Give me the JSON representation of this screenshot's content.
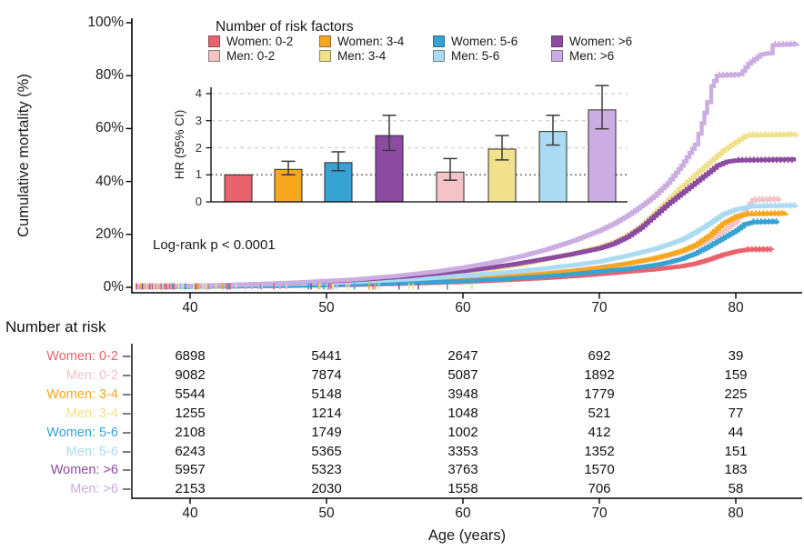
{
  "colors": {
    "women_0_2": "#E8636B",
    "men_0_2": "#F4C3C8",
    "women_3_4": "#F7A71D",
    "men_3_4": "#F1E18D",
    "women_5_6": "#37A2D4",
    "men_5_6": "#ABDBF2",
    "women_gt6": "#8C4BA0",
    "men_gt6": "#CBADE1"
  },
  "legend": {
    "title": "Number of risk factors",
    "columns": [
      [
        {
          "label": "Women: 0-2",
          "color_key": "women_0_2"
        },
        {
          "label": "Men: 0-2",
          "color_key": "men_0_2"
        }
      ],
      [
        {
          "label": "Women: 3-4",
          "color_key": "women_3_4"
        },
        {
          "label": "Men: 3-4",
          "color_key": "men_3_4"
        }
      ],
      [
        {
          "label": "Women: 5-6",
          "color_key": "women_5_6"
        },
        {
          "label": "Men: 5-6",
          "color_key": "men_5_6"
        }
      ],
      [
        {
          "label": "Women: >6",
          "color_key": "women_gt6"
        },
        {
          "label": "Men: >6",
          "color_key": "men_gt6"
        }
      ]
    ]
  },
  "chart_data": [
    {
      "id": "km_curves",
      "type": "line",
      "ylabel": "Cumulative mortality (%)",
      "xlabel": "Age (years)",
      "annotation": "Log-rank p < 0.0001",
      "xticks": [
        "40",
        "50",
        "60",
        "70",
        "80"
      ],
      "xtick_ages": [
        40,
        50,
        60,
        70,
        80
      ],
      "yticks": [
        "0%",
        "20%",
        "40%",
        "60%",
        "80%",
        "100%"
      ],
      "ytick_vals": [
        0,
        20,
        40,
        60,
        80,
        100
      ],
      "xlim": [
        35.7,
        84.6
      ],
      "ylim": [
        0,
        100
      ],
      "series": [
        {
          "name": "Women: 0-2",
          "color_key": "women_0_2",
          "points": [
            [
              36,
              0.1
            ],
            [
              42,
              0.3
            ],
            [
              47,
              0.5
            ],
            [
              52,
              0.9
            ],
            [
              56,
              1.4
            ],
            [
              60,
              2.0
            ],
            [
              63,
              2.7
            ],
            [
              66,
              3.5
            ],
            [
              68,
              4.2
            ],
            [
              70,
              5.0
            ],
            [
              72,
              5.9
            ],
            [
              74,
              6.8
            ],
            [
              76,
              8.0
            ],
            [
              77,
              9.0
            ],
            [
              78,
              10.5
            ],
            [
              79,
              12.3
            ],
            [
              80,
              13.6
            ],
            [
              80.8,
              14.3
            ],
            [
              82.6,
              14.4
            ]
          ],
          "censor": [
            {
              "from": 80.9,
              "to": 82.6,
              "pct": 14.4
            }
          ]
        },
        {
          "name": "Men: 0-2",
          "color_key": "men_0_2",
          "points": [
            [
              36,
              0.1
            ],
            [
              42,
              0.4
            ],
            [
              47,
              0.8
            ],
            [
              52,
              1.4
            ],
            [
              56,
              2.2
            ],
            [
              60,
              3.2
            ],
            [
              63,
              4.2
            ],
            [
              66,
              5.4
            ],
            [
              68,
              6.4
            ],
            [
              70,
              7.6
            ],
            [
              72,
              9.0
            ],
            [
              74,
              10.8
            ],
            [
              75,
              12.0
            ],
            [
              76,
              13.5
            ],
            [
              77,
              15.5
            ],
            [
              78,
              18.0
            ],
            [
              79,
              21.0
            ],
            [
              80,
              25.0
            ],
            [
              80.6,
              29.0
            ],
            [
              81.2,
              33.0
            ],
            [
              83.2,
              33.4
            ]
          ],
          "censor": [
            {
              "from": 81.4,
              "to": 83.2,
              "pct": 33.4
            }
          ]
        },
        {
          "name": "Women: 3-4",
          "color_key": "women_3_4",
          "points": [
            [
              36,
              0.1
            ],
            [
              42,
              0.3
            ],
            [
              47,
              0.7
            ],
            [
              52,
              1.2
            ],
            [
              56,
              2.0
            ],
            [
              60,
              3.0
            ],
            [
              63,
              4.0
            ],
            [
              66,
              5.2
            ],
            [
              68,
              6.2
            ],
            [
              70,
              7.4
            ],
            [
              72,
              9.0
            ],
            [
              74,
              11.0
            ],
            [
              75,
              12.3
            ],
            [
              76,
              13.8
            ],
            [
              77,
              16.0
            ],
            [
              78,
              19.5
            ],
            [
              79,
              24.0
            ],
            [
              80,
              26.8
            ],
            [
              80.7,
              27.6
            ],
            [
              83.7,
              28.0
            ]
          ],
          "censor": [
            {
              "from": 80.9,
              "to": 83.7,
              "pct": 28.0
            }
          ]
        },
        {
          "name": "Men: 3-4",
          "color_key": "men_3_4",
          "points": [
            [
              36,
              0.1
            ],
            [
              42,
              0.5
            ],
            [
              47,
              1.0
            ],
            [
              52,
              1.9
            ],
            [
              56,
              3.2
            ],
            [
              60,
              5.5
            ],
            [
              62,
              6.8
            ],
            [
              64,
              8.5
            ],
            [
              66,
              10.5
            ],
            [
              68,
              12.8
            ],
            [
              70,
              15.3
            ],
            [
              71,
              17.0
            ],
            [
              72,
              19.5
            ],
            [
              73,
              23.0
            ],
            [
              74,
              28.0
            ],
            [
              75,
              33.0
            ],
            [
              76,
              38.0
            ],
            [
              77,
              42.5
            ],
            [
              78,
              47.0
            ],
            [
              79,
              51.5
            ],
            [
              80,
              55.0
            ],
            [
              80.7,
              57.3
            ],
            [
              84.4,
              57.8
            ]
          ],
          "censor": [
            {
              "from": 81.0,
              "to": 84.4,
              "pct": 57.8
            }
          ]
        },
        {
          "name": "Women: 5-6",
          "color_key": "women_5_6",
          "points": [
            [
              36,
              0.1
            ],
            [
              42,
              0.3
            ],
            [
              47,
              0.6
            ],
            [
              52,
              1.0
            ],
            [
              56,
              1.6
            ],
            [
              60,
              2.4
            ],
            [
              63,
              3.2
            ],
            [
              66,
              4.2
            ],
            [
              68,
              5.0
            ],
            [
              70,
              6.0
            ],
            [
              72,
              7.0
            ],
            [
              74,
              8.4
            ],
            [
              75,
              9.4
            ],
            [
              76,
              10.8
            ],
            [
              77,
              12.8
            ],
            [
              78,
              15.5
            ],
            [
              79,
              18.5
            ],
            [
              80,
              21.5
            ],
            [
              80.6,
              23.8
            ],
            [
              81.2,
              24.6
            ],
            [
              83,
              24.9
            ]
          ],
          "censor": [
            {
              "from": 81.3,
              "to": 83.0,
              "pct": 24.9
            }
          ]
        },
        {
          "name": "Men: 5-6",
          "color_key": "men_5_6",
          "points": [
            [
              36,
              0.2
            ],
            [
              42,
              0.6
            ],
            [
              47,
              1.2
            ],
            [
              52,
              2.0
            ],
            [
              56,
              3.0
            ],
            [
              60,
              4.3
            ],
            [
              63,
              5.6
            ],
            [
              66,
              7.2
            ],
            [
              68,
              8.4
            ],
            [
              70,
              9.8
            ],
            [
              72,
              12.0
            ],
            [
              74,
              14.5
            ],
            [
              75,
              16.2
            ],
            [
              76,
              18.0
            ],
            [
              77,
              20.8
            ],
            [
              78,
              24.0
            ],
            [
              79,
              27.5
            ],
            [
              80,
              29.5
            ],
            [
              81,
              30.5
            ],
            [
              84.4,
              31.0
            ]
          ],
          "censor": [
            {
              "from": 81.2,
              "to": 84.4,
              "pct": 31.0
            }
          ]
        },
        {
          "name": "Women: >6",
          "color_key": "women_gt6",
          "points": [
            [
              36,
              0.2
            ],
            [
              42,
              0.8
            ],
            [
              47,
              1.6
            ],
            [
              52,
              2.7
            ],
            [
              56,
              4.2
            ],
            [
              60,
              6.2
            ],
            [
              62,
              7.5
            ],
            [
              64,
              9.0
            ],
            [
              66,
              10.8
            ],
            [
              68,
              12.6
            ],
            [
              70,
              14.8
            ],
            [
              71,
              16.5
            ],
            [
              72,
              19.0
            ],
            [
              73,
              22.5
            ],
            [
              74,
              27.0
            ],
            [
              75,
              31.5
            ],
            [
              76,
              35.5
            ],
            [
              77,
              39.5
            ],
            [
              78,
              43.5
            ],
            [
              78.6,
              46.0
            ],
            [
              79.3,
              47.5
            ],
            [
              80,
              48.0
            ],
            [
              84.4,
              48.4
            ]
          ],
          "censor": [
            {
              "from": 80.2,
              "to": 84.4,
              "pct": 48.2
            }
          ]
        },
        {
          "name": "Men: >6",
          "color_key": "men_gt6",
          "points": [
            [
              36,
              0.2
            ],
            [
              40,
              0.6
            ],
            [
              44,
              1.1
            ],
            [
              48,
              1.9
            ],
            [
              52,
              3.0
            ],
            [
              55,
              4.3
            ],
            [
              58,
              6.0
            ],
            [
              60,
              7.5
            ],
            [
              62,
              9.3
            ],
            [
              64,
              11.5
            ],
            [
              66,
              14.2
            ],
            [
              68,
              17.5
            ],
            [
              70,
              21.5
            ],
            [
              71,
              24.0
            ],
            [
              72,
              27.0
            ],
            [
              73,
              30.5
            ],
            [
              74,
              34.5
            ],
            [
              75,
              39.5
            ],
            [
              76,
              46.0
            ],
            [
              77,
              54.0
            ],
            [
              77.5,
              62.0
            ],
            [
              77.9,
              70.0
            ],
            [
              78.2,
              76.0
            ],
            [
              78.6,
              80.0
            ],
            [
              80.3,
              80.5
            ],
            [
              80.9,
              84.5
            ],
            [
              81.8,
              88.0
            ],
            [
              82.4,
              88.5
            ],
            [
              82.7,
              91.5
            ],
            [
              84.5,
              92.0
            ]
          ],
          "censor": [
            {
              "from": 78.8,
              "to": 80.3,
              "pct": 80.3
            },
            {
              "from": 82.9,
              "to": 84.5,
              "pct": 92.0
            }
          ]
        }
      ]
    },
    {
      "id": "hr_inset",
      "type": "bar",
      "ylabel": "HR (95% CI)",
      "yticks": [
        "0",
        "1",
        "2",
        "3",
        "4"
      ],
      "ytick_vals": [
        0,
        1,
        2,
        3,
        4
      ],
      "ylim": [
        0,
        4.5
      ],
      "reference_line": 1,
      "grid": "dashed horizontal at 1,2,3,4",
      "bars": [
        {
          "label": "Women: 0-2",
          "color_key": "women_0_2",
          "hr": 1.0
        },
        {
          "label": "Women: 3-4",
          "color_key": "women_3_4",
          "hr": 1.2,
          "lo": 1.0,
          "hi": 1.5
        },
        {
          "label": "Women: 5-6",
          "color_key": "women_5_6",
          "hr": 1.45,
          "lo": 1.15,
          "hi": 1.85
        },
        {
          "label": "Women: >6",
          "color_key": "women_gt6",
          "hr": 2.45,
          "lo": 1.9,
          "hi": 3.2
        },
        {
          "label": "Men: 0-2",
          "color_key": "men_0_2",
          "hr": 1.1,
          "lo": 0.8,
          "hi": 1.6
        },
        {
          "label": "Men: 3-4",
          "color_key": "men_3_4",
          "hr": 1.95,
          "lo": 1.55,
          "hi": 2.45
        },
        {
          "label": "Men: 5-6",
          "color_key": "men_5_6",
          "hr": 2.6,
          "lo": 2.1,
          "hi": 3.2
        },
        {
          "label": "Men: >6",
          "color_key": "men_gt6",
          "hr": 3.4,
          "lo": 2.7,
          "hi": 4.3
        }
      ]
    }
  ],
  "risk_table": {
    "title": "Number at risk",
    "xlabel": "Age (years)",
    "ages": [
      "40",
      "50",
      "60",
      "70",
      "80"
    ],
    "age_vals": [
      40,
      50,
      60,
      70,
      80
    ],
    "rows": [
      {
        "label": "Women: 0-2",
        "color_key": "women_0_2",
        "values": [
          "6898",
          "5441",
          "2647",
          "692",
          "39"
        ]
      },
      {
        "label": "Men: 0-2",
        "color_key": "men_0_2",
        "values": [
          "9082",
          "7874",
          "5087",
          "1892",
          "159"
        ]
      },
      {
        "label": "Women: 3-4",
        "color_key": "women_3_4",
        "values": [
          "5544",
          "5148",
          "3948",
          "1779",
          "225"
        ]
      },
      {
        "label": "Men: 3-4",
        "color_key": "men_3_4",
        "values": [
          "1255",
          "1214",
          "1048",
          "521",
          "77"
        ]
      },
      {
        "label": "Women: 5-6",
        "color_key": "women_5_6",
        "values": [
          "2108",
          "1749",
          "1002",
          "412",
          "44"
        ]
      },
      {
        "label": "Men: 5-6",
        "color_key": "men_5_6",
        "values": [
          "6243",
          "5365",
          "3353",
          "1352",
          "151"
        ]
      },
      {
        "label": "Women: >6",
        "color_key": "women_gt6",
        "values": [
          "5957",
          "5323",
          "3763",
          "1570",
          "183"
        ]
      },
      {
        "label": "Men: >6",
        "color_key": "men_gt6",
        "values": [
          "2153",
          "2030",
          "1558",
          "706",
          "58"
        ]
      }
    ]
  }
}
